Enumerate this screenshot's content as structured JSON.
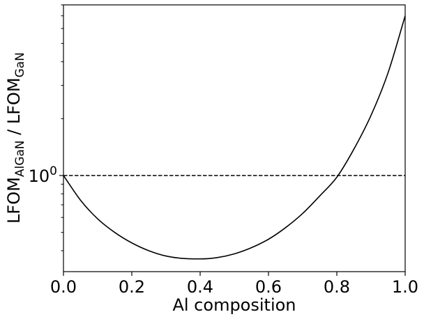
{
  "chart_data": {
    "type": "line",
    "title": "",
    "xlabel": "Al composition",
    "ylabel": {
      "base1": "LFOM",
      "sub1": "AlGaN",
      "sep": " / ",
      "base2": "LFOM",
      "sub2": "GaN"
    },
    "xlim": [
      0.0,
      1.0
    ],
    "ylim": [
      0.31,
      8.0
    ],
    "yscale": "log",
    "xticks": [
      0.0,
      0.2,
      0.4,
      0.6,
      0.8,
      1.0
    ],
    "xtick_labels": [
      "0.0",
      "0.2",
      "0.4",
      "0.6",
      "0.8",
      "1.0"
    ],
    "ytick_major": {
      "value": 1.0,
      "base": "10",
      "exp": "0"
    },
    "grid": false,
    "legend": "none",
    "series": [
      {
        "color": "#000000",
        "linestyle": "solid",
        "x": [
          0.0,
          0.05,
          0.1,
          0.15,
          0.2,
          0.25,
          0.3,
          0.35,
          0.4,
          0.45,
          0.5,
          0.55,
          0.6,
          0.65,
          0.7,
          0.75,
          0.8,
          0.85,
          0.9,
          0.95,
          1.0
        ],
        "y": [
          1.0,
          0.74,
          0.59,
          0.5,
          0.44,
          0.4,
          0.375,
          0.364,
          0.362,
          0.368,
          0.385,
          0.415,
          0.46,
          0.53,
          0.63,
          0.78,
          0.98,
          1.38,
          2.08,
          3.5,
          7.0
        ]
      }
    ],
    "reference_lines": [
      {
        "y": 1.0,
        "color": "#000000",
        "linestyle": "dashed"
      }
    ]
  }
}
